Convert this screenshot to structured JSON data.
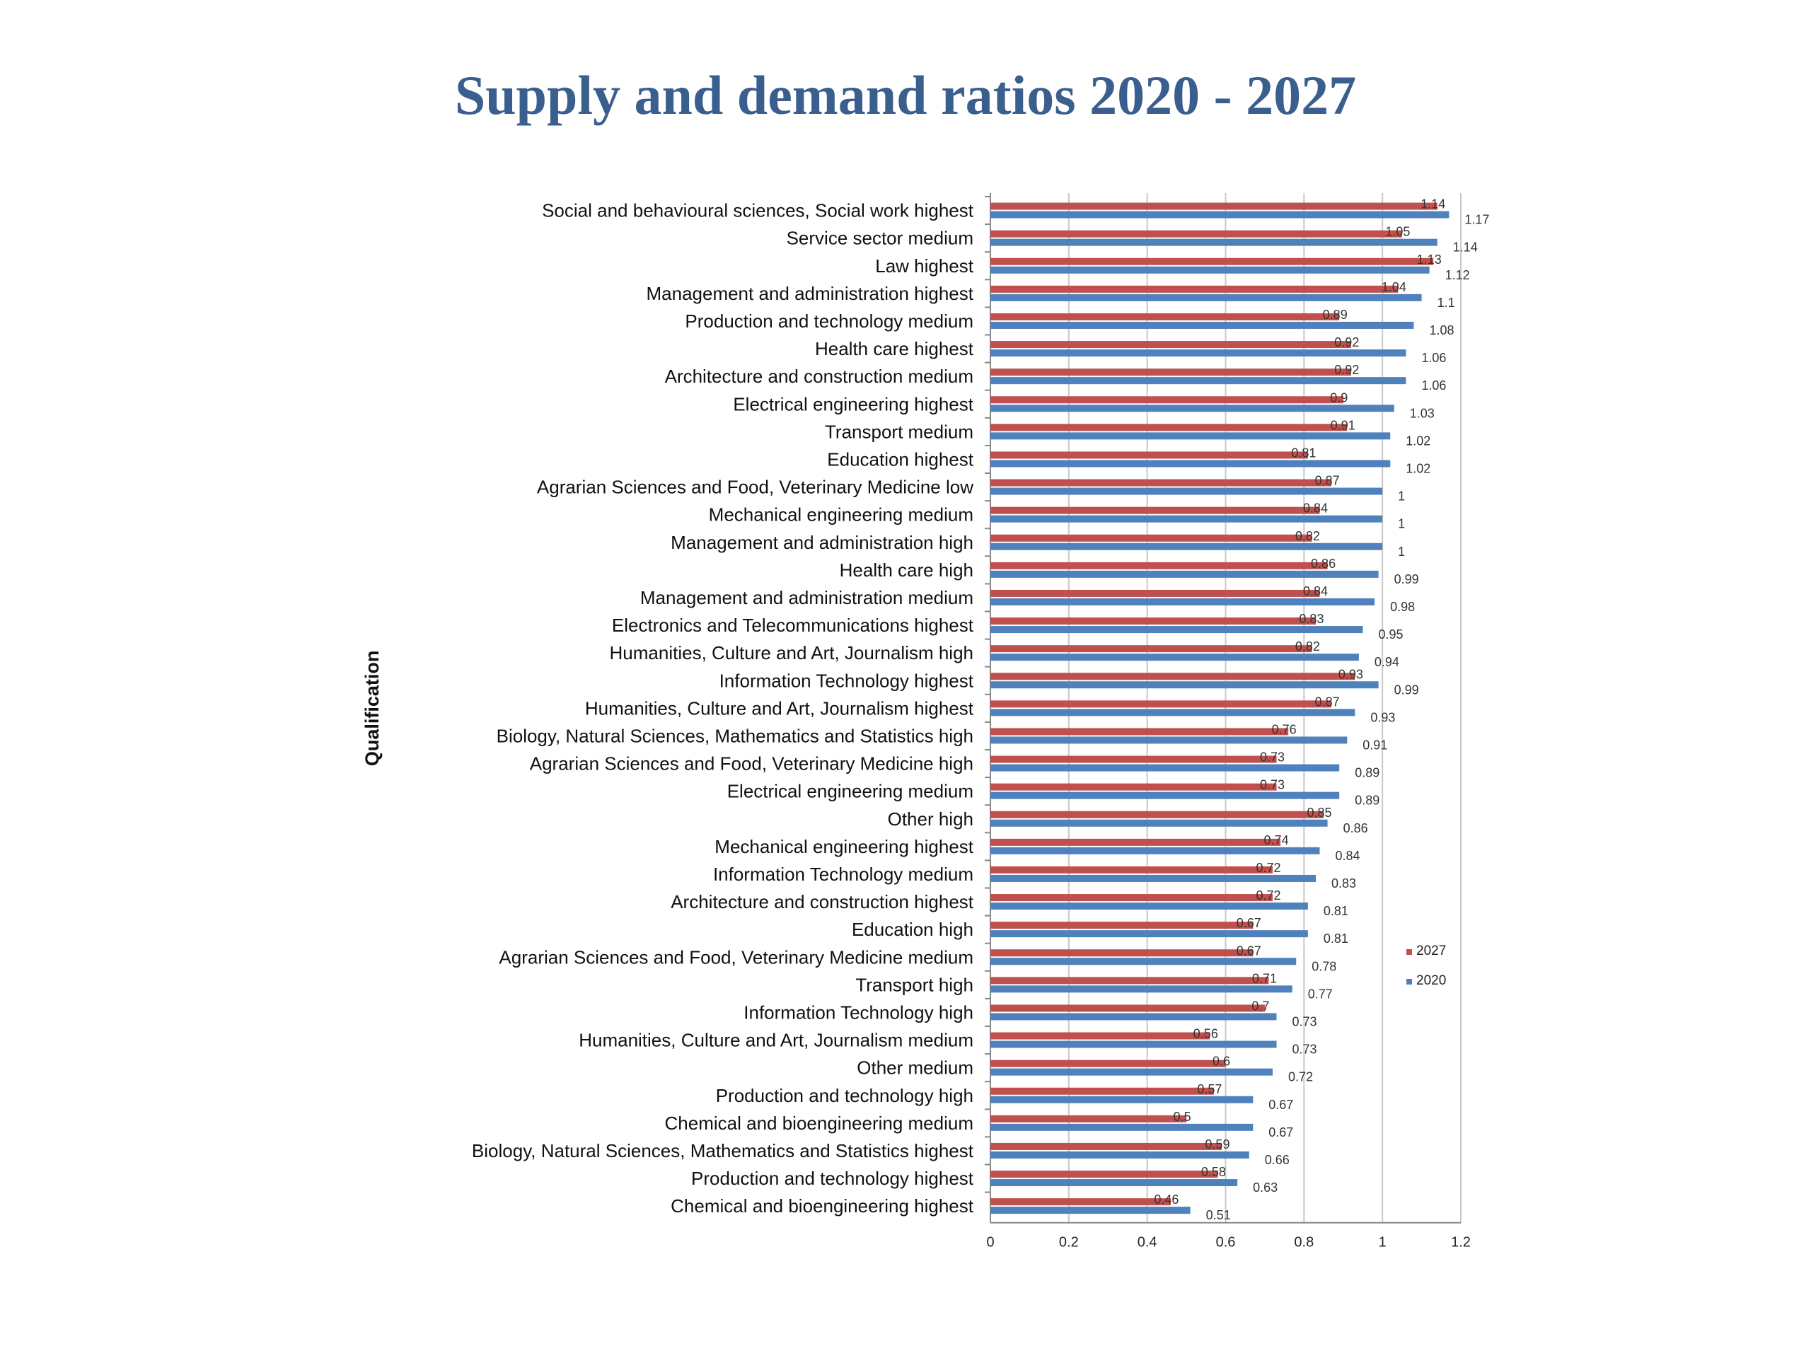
{
  "page_title": "Supply and demand ratios 2020 - 2027",
  "chart_data": {
    "type": "bar",
    "orientation": "horizontal",
    "title": "Supply and demand ratios 2020 - 2027",
    "ylabel": "Qualification",
    "xlabel": "",
    "xlim": [
      0,
      1.2
    ],
    "xticks": [
      "0",
      "0.2",
      "0.4",
      "0.6",
      "0.8",
      "1",
      "1.2"
    ],
    "grid": "vertical",
    "legend_position": "right",
    "categories": [
      "Social and behavioural sciences, Social work highest",
      "Service sector medium",
      "Law highest",
      "Management and administration highest",
      "Production and technology medium",
      "Health care highest",
      "Architecture and construction medium",
      "Electrical engineering highest",
      "Transport medium",
      "Education highest",
      "Agrarian Sciences and Food, Veterinary Medicine low",
      "Mechanical engineering medium",
      "Management and administration high",
      "Health care high",
      "Management and administration medium",
      "Electronics and Telecommunications highest",
      "Humanities, Culture and Art, Journalism high",
      "Information Technology highest",
      "Humanities, Culture and Art, Journalism highest",
      "Biology, Natural Sciences, Mathematics and Statistics high",
      "Agrarian Sciences and Food, Veterinary Medicine high",
      "Electrical engineering medium",
      "Other high",
      "Mechanical engineering highest",
      "Information Technology medium",
      "Architecture and construction highest",
      "Education high",
      "Agrarian Sciences and Food, Veterinary Medicine medium",
      "Transport high",
      "Information Technology high",
      "Humanities, Culture and Art, Journalism medium",
      "Other medium",
      "Production and technology high",
      "Chemical and bioengineering medium",
      "Biology, Natural Sciences, Mathematics and Statistics highest",
      "Production and technology highest",
      "Chemical and bioengineering highest"
    ],
    "series": [
      {
        "name": "2027",
        "color": "#c0504d",
        "values": [
          1.14,
          1.05,
          1.13,
          1.04,
          0.89,
          0.92,
          0.92,
          0.9,
          0.91,
          0.81,
          0.87,
          0.84,
          0.82,
          0.86,
          0.84,
          0.83,
          0.82,
          0.93,
          0.87,
          0.76,
          0.73,
          0.73,
          0.85,
          0.74,
          0.72,
          0.72,
          0.67,
          0.67,
          0.71,
          0.7,
          0.56,
          0.6,
          0.57,
          0.5,
          0.59,
          0.58,
          0.46
        ]
      },
      {
        "name": "2020",
        "color": "#4f81bd",
        "values": [
          1.17,
          1.14,
          1.12,
          1.1,
          1.08,
          1.06,
          1.06,
          1.03,
          1.02,
          1.02,
          1,
          1,
          1,
          0.99,
          0.98,
          0.95,
          0.94,
          0.99,
          0.93,
          0.91,
          0.89,
          0.89,
          0.86,
          0.84,
          0.83,
          0.81,
          0.81,
          0.78,
          0.77,
          0.73,
          0.73,
          0.72,
          0.67,
          0.67,
          0.66,
          0.63,
          0.51
        ]
      }
    ]
  }
}
